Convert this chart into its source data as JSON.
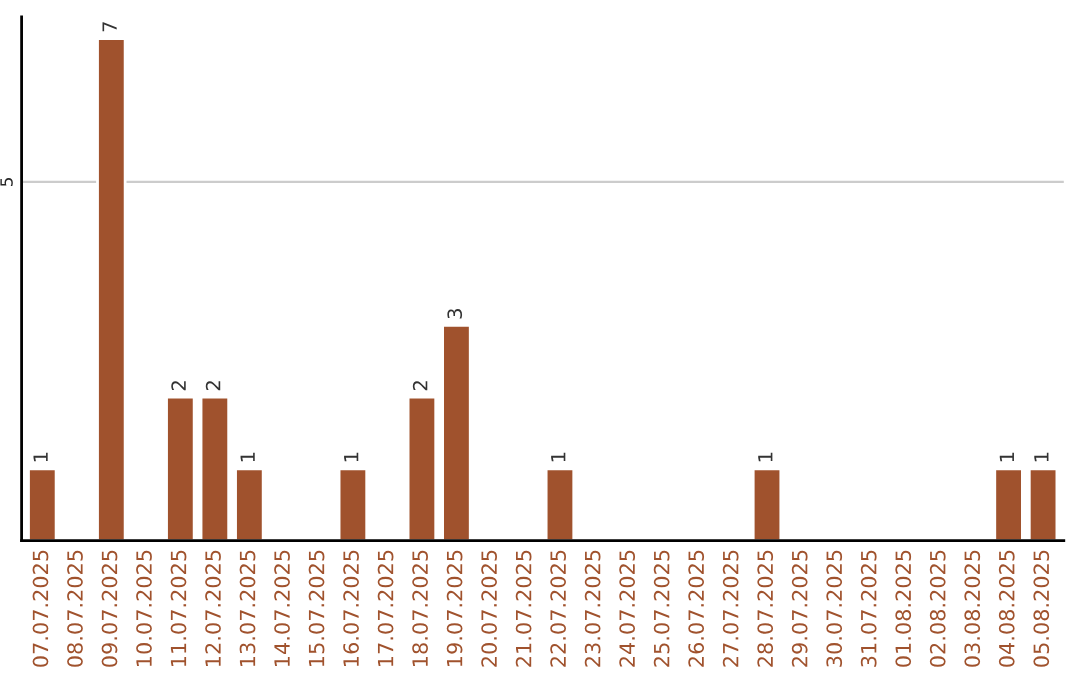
{
  "chart_data": {
    "type": "bar",
    "categories": [
      "07.07.2025",
      "08.07.2025",
      "09.07.2025",
      "10.07.2025",
      "11.07.2025",
      "12.07.2025",
      "13.07.2025",
      "14.07.2025",
      "15.07.2025",
      "16.07.2025",
      "17.07.2025",
      "18.07.2025",
      "19.07.2025",
      "20.07.2025",
      "21.07.2025",
      "22.07.2025",
      "23.07.2025",
      "24.07.2025",
      "25.07.2025",
      "26.07.2025",
      "27.07.2025",
      "28.07.2025",
      "29.07.2025",
      "30.07.2025",
      "31.07.2025",
      "01.08.2025",
      "02.08.2025",
      "03.08.2025",
      "04.08.2025",
      "05.08.2025"
    ],
    "values": [
      1,
      null,
      7,
      null,
      2,
      2,
      1,
      null,
      null,
      1,
      null,
      2,
      3,
      null,
      null,
      1,
      null,
      null,
      null,
      null,
      null,
      1,
      null,
      null,
      null,
      null,
      null,
      null,
      1,
      1
    ],
    "value_labels": [
      "1",
      null,
      "7",
      null,
      "2",
      "2",
      "1",
      null,
      null,
      "1",
      null,
      "2",
      "3",
      null,
      null,
      "1",
      null,
      null,
      null,
      null,
      null,
      "1",
      null,
      null,
      null,
      null,
      null,
      null,
      "1",
      "1"
    ],
    "color": "#a0522d",
    "ylim": [
      0,
      7.3
    ],
    "yticks": [
      5
    ],
    "grid": "y",
    "legend": false
  }
}
